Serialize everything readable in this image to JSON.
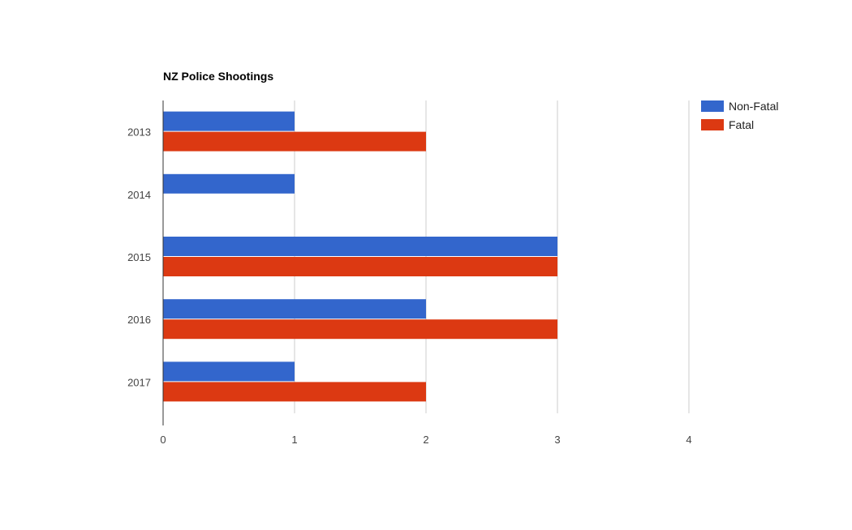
{
  "chart_data": {
    "type": "bar",
    "orientation": "horizontal",
    "title": "NZ Police Shootings",
    "xlabel": "",
    "ylabel": "",
    "categories": [
      "2013",
      "2014",
      "2015",
      "2016",
      "2017"
    ],
    "series": [
      {
        "name": "Non-Fatal",
        "color": "#3366cc",
        "values": [
          1,
          1,
          3,
          2,
          1
        ]
      },
      {
        "name": "Fatal",
        "color": "#dc3912",
        "values": [
          2,
          0,
          3,
          3,
          2
        ]
      }
    ],
    "xlim": [
      0,
      4
    ],
    "xticks": [
      "0",
      "1",
      "2",
      "3",
      "4"
    ],
    "grid": true,
    "legend_position": "right"
  }
}
